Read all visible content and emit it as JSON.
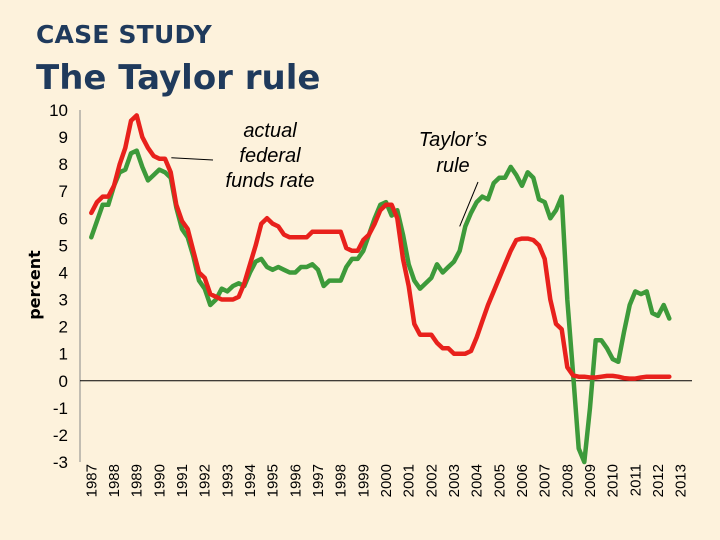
{
  "slide": {
    "kicker": "CASE STUDY",
    "title": "The Taylor rule"
  },
  "colors": {
    "background": "#fdf2dc",
    "title": "#1f3a5c",
    "actual": "#e8211c",
    "taylor": "#3d9a3a"
  },
  "chart_data": {
    "type": "line",
    "title": "",
    "xlabel": "",
    "ylabel": "percent",
    "ylim": [
      -3,
      10
    ],
    "yticks": [
      10,
      9,
      8,
      7,
      6,
      5,
      4,
      3,
      2,
      1,
      0,
      -1,
      -2,
      -3
    ],
    "xlim": [
      1987,
      2014
    ],
    "xticks": [
      "1987",
      "1988",
      "1989",
      "1990",
      "1991",
      "1992",
      "1993",
      "1994",
      "1995",
      "1996",
      "1997",
      "1998",
      "1999",
      "2000",
      "2001",
      "2002",
      "2003",
      "2004",
      "2005",
      "2006",
      "2007",
      "2008",
      "2009",
      "2010",
      "2011",
      "2012",
      "2013"
    ],
    "annotations": [
      {
        "lines": [
          "actual",
          "federal",
          "funds rate"
        ],
        "series": "actual"
      },
      {
        "lines": [
          "Taylor’s",
          "rule"
        ],
        "series": "taylor"
      }
    ],
    "series": [
      {
        "name": "Taylor's rule",
        "color_key": "taylor",
        "points": [
          [
            1987.0,
            5.3
          ],
          [
            1987.25,
            5.9
          ],
          [
            1987.5,
            6.5
          ],
          [
            1987.75,
            6.5
          ],
          [
            1988.0,
            7.2
          ],
          [
            1988.25,
            7.7
          ],
          [
            1988.5,
            7.8
          ],
          [
            1988.75,
            8.4
          ],
          [
            1989.0,
            8.5
          ],
          [
            1989.25,
            7.9
          ],
          [
            1989.5,
            7.4
          ],
          [
            1989.75,
            7.6
          ],
          [
            1990.0,
            7.8
          ],
          [
            1990.25,
            7.7
          ],
          [
            1990.5,
            7.5
          ],
          [
            1990.75,
            6.4
          ],
          [
            1991.0,
            5.6
          ],
          [
            1991.25,
            5.3
          ],
          [
            1991.5,
            4.6
          ],
          [
            1991.75,
            3.7
          ],
          [
            1992.0,
            3.4
          ],
          [
            1992.25,
            2.8
          ],
          [
            1992.5,
            3.0
          ],
          [
            1992.75,
            3.4
          ],
          [
            1993.0,
            3.3
          ],
          [
            1993.25,
            3.5
          ],
          [
            1993.5,
            3.6
          ],
          [
            1993.75,
            3.5
          ],
          [
            1994.0,
            4.0
          ],
          [
            1994.25,
            4.4
          ],
          [
            1994.5,
            4.5
          ],
          [
            1994.75,
            4.2
          ],
          [
            1995.0,
            4.1
          ],
          [
            1995.25,
            4.2
          ],
          [
            1995.5,
            4.1
          ],
          [
            1995.75,
            4.0
          ],
          [
            1996.0,
            4.0
          ],
          [
            1996.25,
            4.2
          ],
          [
            1996.5,
            4.2
          ],
          [
            1996.75,
            4.3
          ],
          [
            1997.0,
            4.1
          ],
          [
            1997.25,
            3.5
          ],
          [
            1997.5,
            3.7
          ],
          [
            1997.75,
            3.7
          ],
          [
            1998.0,
            3.7
          ],
          [
            1998.25,
            4.2
          ],
          [
            1998.5,
            4.5
          ],
          [
            1998.75,
            4.5
          ],
          [
            1999.0,
            4.8
          ],
          [
            1999.25,
            5.4
          ],
          [
            1999.5,
            6.0
          ],
          [
            1999.75,
            6.5
          ],
          [
            2000.0,
            6.6
          ],
          [
            2000.25,
            6.1
          ],
          [
            2000.5,
            6.3
          ],
          [
            2000.75,
            5.4
          ],
          [
            2001.0,
            4.3
          ],
          [
            2001.25,
            3.7
          ],
          [
            2001.5,
            3.4
          ],
          [
            2001.75,
            3.6
          ],
          [
            2002.0,
            3.8
          ],
          [
            2002.25,
            4.3
          ],
          [
            2002.5,
            4.0
          ],
          [
            2002.75,
            4.2
          ],
          [
            2003.0,
            4.4
          ],
          [
            2003.25,
            4.8
          ],
          [
            2003.5,
            5.7
          ],
          [
            2003.75,
            6.2
          ],
          [
            2004.0,
            6.6
          ],
          [
            2004.25,
            6.8
          ],
          [
            2004.5,
            6.7
          ],
          [
            2004.75,
            7.3
          ],
          [
            2005.0,
            7.5
          ],
          [
            2005.25,
            7.5
          ],
          [
            2005.5,
            7.9
          ],
          [
            2005.75,
            7.6
          ],
          [
            2006.0,
            7.2
          ],
          [
            2006.25,
            7.7
          ],
          [
            2006.5,
            7.5
          ],
          [
            2006.75,
            6.7
          ],
          [
            2007.0,
            6.6
          ],
          [
            2007.25,
            6.0
          ],
          [
            2007.5,
            6.3
          ],
          [
            2007.75,
            6.8
          ],
          [
            2008.0,
            3.0
          ],
          [
            2008.25,
            0.3
          ],
          [
            2008.5,
            -2.5
          ],
          [
            2008.75,
            -3.0
          ],
          [
            2009.0,
            -1.0
          ],
          [
            2009.25,
            1.5
          ],
          [
            2009.5,
            1.5
          ],
          [
            2009.75,
            1.2
          ],
          [
            2010.0,
            0.8
          ],
          [
            2010.25,
            0.7
          ],
          [
            2010.5,
            1.8
          ],
          [
            2010.75,
            2.8
          ],
          [
            2011.0,
            3.3
          ],
          [
            2011.25,
            3.2
          ],
          [
            2011.5,
            3.3
          ],
          [
            2011.75,
            2.5
          ],
          [
            2012.0,
            2.4
          ],
          [
            2012.25,
            2.8
          ],
          [
            2012.5,
            2.3
          ]
        ]
      },
      {
        "name": "actual federal funds rate",
        "color_key": "actual",
        "points": [
          [
            1987.0,
            6.2
          ],
          [
            1987.25,
            6.6
          ],
          [
            1987.5,
            6.8
          ],
          [
            1987.75,
            6.8
          ],
          [
            1988.0,
            7.2
          ],
          [
            1988.25,
            8.0
          ],
          [
            1988.5,
            8.6
          ],
          [
            1988.75,
            9.6
          ],
          [
            1989.0,
            9.8
          ],
          [
            1989.25,
            9.0
          ],
          [
            1989.5,
            8.6
          ],
          [
            1989.75,
            8.3
          ],
          [
            1990.0,
            8.2
          ],
          [
            1990.25,
            8.2
          ],
          [
            1990.5,
            7.7
          ],
          [
            1990.75,
            6.5
          ],
          [
            1991.0,
            5.9
          ],
          [
            1991.25,
            5.6
          ],
          [
            1991.5,
            4.8
          ],
          [
            1991.75,
            4.0
          ],
          [
            1992.0,
            3.8
          ],
          [
            1992.25,
            3.2
          ],
          [
            1992.5,
            3.1
          ],
          [
            1992.75,
            3.0
          ],
          [
            1993.0,
            3.0
          ],
          [
            1993.25,
            3.0
          ],
          [
            1993.5,
            3.1
          ],
          [
            1993.75,
            3.6
          ],
          [
            1994.0,
            4.3
          ],
          [
            1994.25,
            5.0
          ],
          [
            1994.5,
            5.8
          ],
          [
            1994.75,
            6.0
          ],
          [
            1995.0,
            5.8
          ],
          [
            1995.25,
            5.7
          ],
          [
            1995.5,
            5.4
          ],
          [
            1995.75,
            5.3
          ],
          [
            1996.0,
            5.3
          ],
          [
            1996.25,
            5.3
          ],
          [
            1996.5,
            5.3
          ],
          [
            1996.75,
            5.5
          ],
          [
            1997.0,
            5.5
          ],
          [
            1997.25,
            5.5
          ],
          [
            1997.5,
            5.5
          ],
          [
            1997.75,
            5.5
          ],
          [
            1998.0,
            5.5
          ],
          [
            1998.25,
            4.9
          ],
          [
            1998.5,
            4.8
          ],
          [
            1998.75,
            4.8
          ],
          [
            1999.0,
            5.2
          ],
          [
            1999.25,
            5.4
          ],
          [
            1999.5,
            5.8
          ],
          [
            1999.75,
            6.3
          ],
          [
            2000.0,
            6.5
          ],
          [
            2000.25,
            6.5
          ],
          [
            2000.5,
            6.0
          ],
          [
            2000.75,
            4.5
          ],
          [
            2001.0,
            3.5
          ],
          [
            2001.25,
            2.1
          ],
          [
            2001.5,
            1.7
          ],
          [
            2001.75,
            1.7
          ],
          [
            2002.0,
            1.7
          ],
          [
            2002.25,
            1.4
          ],
          [
            2002.5,
            1.2
          ],
          [
            2002.75,
            1.2
          ],
          [
            2003.0,
            1.0
          ],
          [
            2003.25,
            1.0
          ],
          [
            2003.5,
            1.0
          ],
          [
            2003.75,
            1.1
          ],
          [
            2004.0,
            1.6
          ],
          [
            2004.25,
            2.2
          ],
          [
            2004.5,
            2.8
          ],
          [
            2004.75,
            3.3
          ],
          [
            2005.0,
            3.8
          ],
          [
            2005.25,
            4.3
          ],
          [
            2005.5,
            4.8
          ],
          [
            2005.75,
            5.2
          ],
          [
            2006.0,
            5.25
          ],
          [
            2006.25,
            5.25
          ],
          [
            2006.5,
            5.2
          ],
          [
            2006.75,
            5.0
          ],
          [
            2007.0,
            4.5
          ],
          [
            2007.25,
            3.0
          ],
          [
            2007.5,
            2.1
          ],
          [
            2007.75,
            1.9
          ],
          [
            2008.0,
            0.5
          ],
          [
            2008.25,
            0.2
          ],
          [
            2008.5,
            0.15
          ],
          [
            2008.75,
            0.15
          ],
          [
            2009.0,
            0.12
          ],
          [
            2009.25,
            0.12
          ],
          [
            2009.5,
            0.15
          ],
          [
            2009.75,
            0.18
          ],
          [
            2010.0,
            0.18
          ],
          [
            2010.25,
            0.15
          ],
          [
            2010.5,
            0.1
          ],
          [
            2010.75,
            0.08
          ],
          [
            2011.0,
            0.08
          ],
          [
            2011.25,
            0.12
          ],
          [
            2011.5,
            0.15
          ],
          [
            2011.75,
            0.15
          ],
          [
            2012.0,
            0.15
          ],
          [
            2012.25,
            0.15
          ],
          [
            2012.5,
            0.15
          ]
        ]
      }
    ]
  }
}
